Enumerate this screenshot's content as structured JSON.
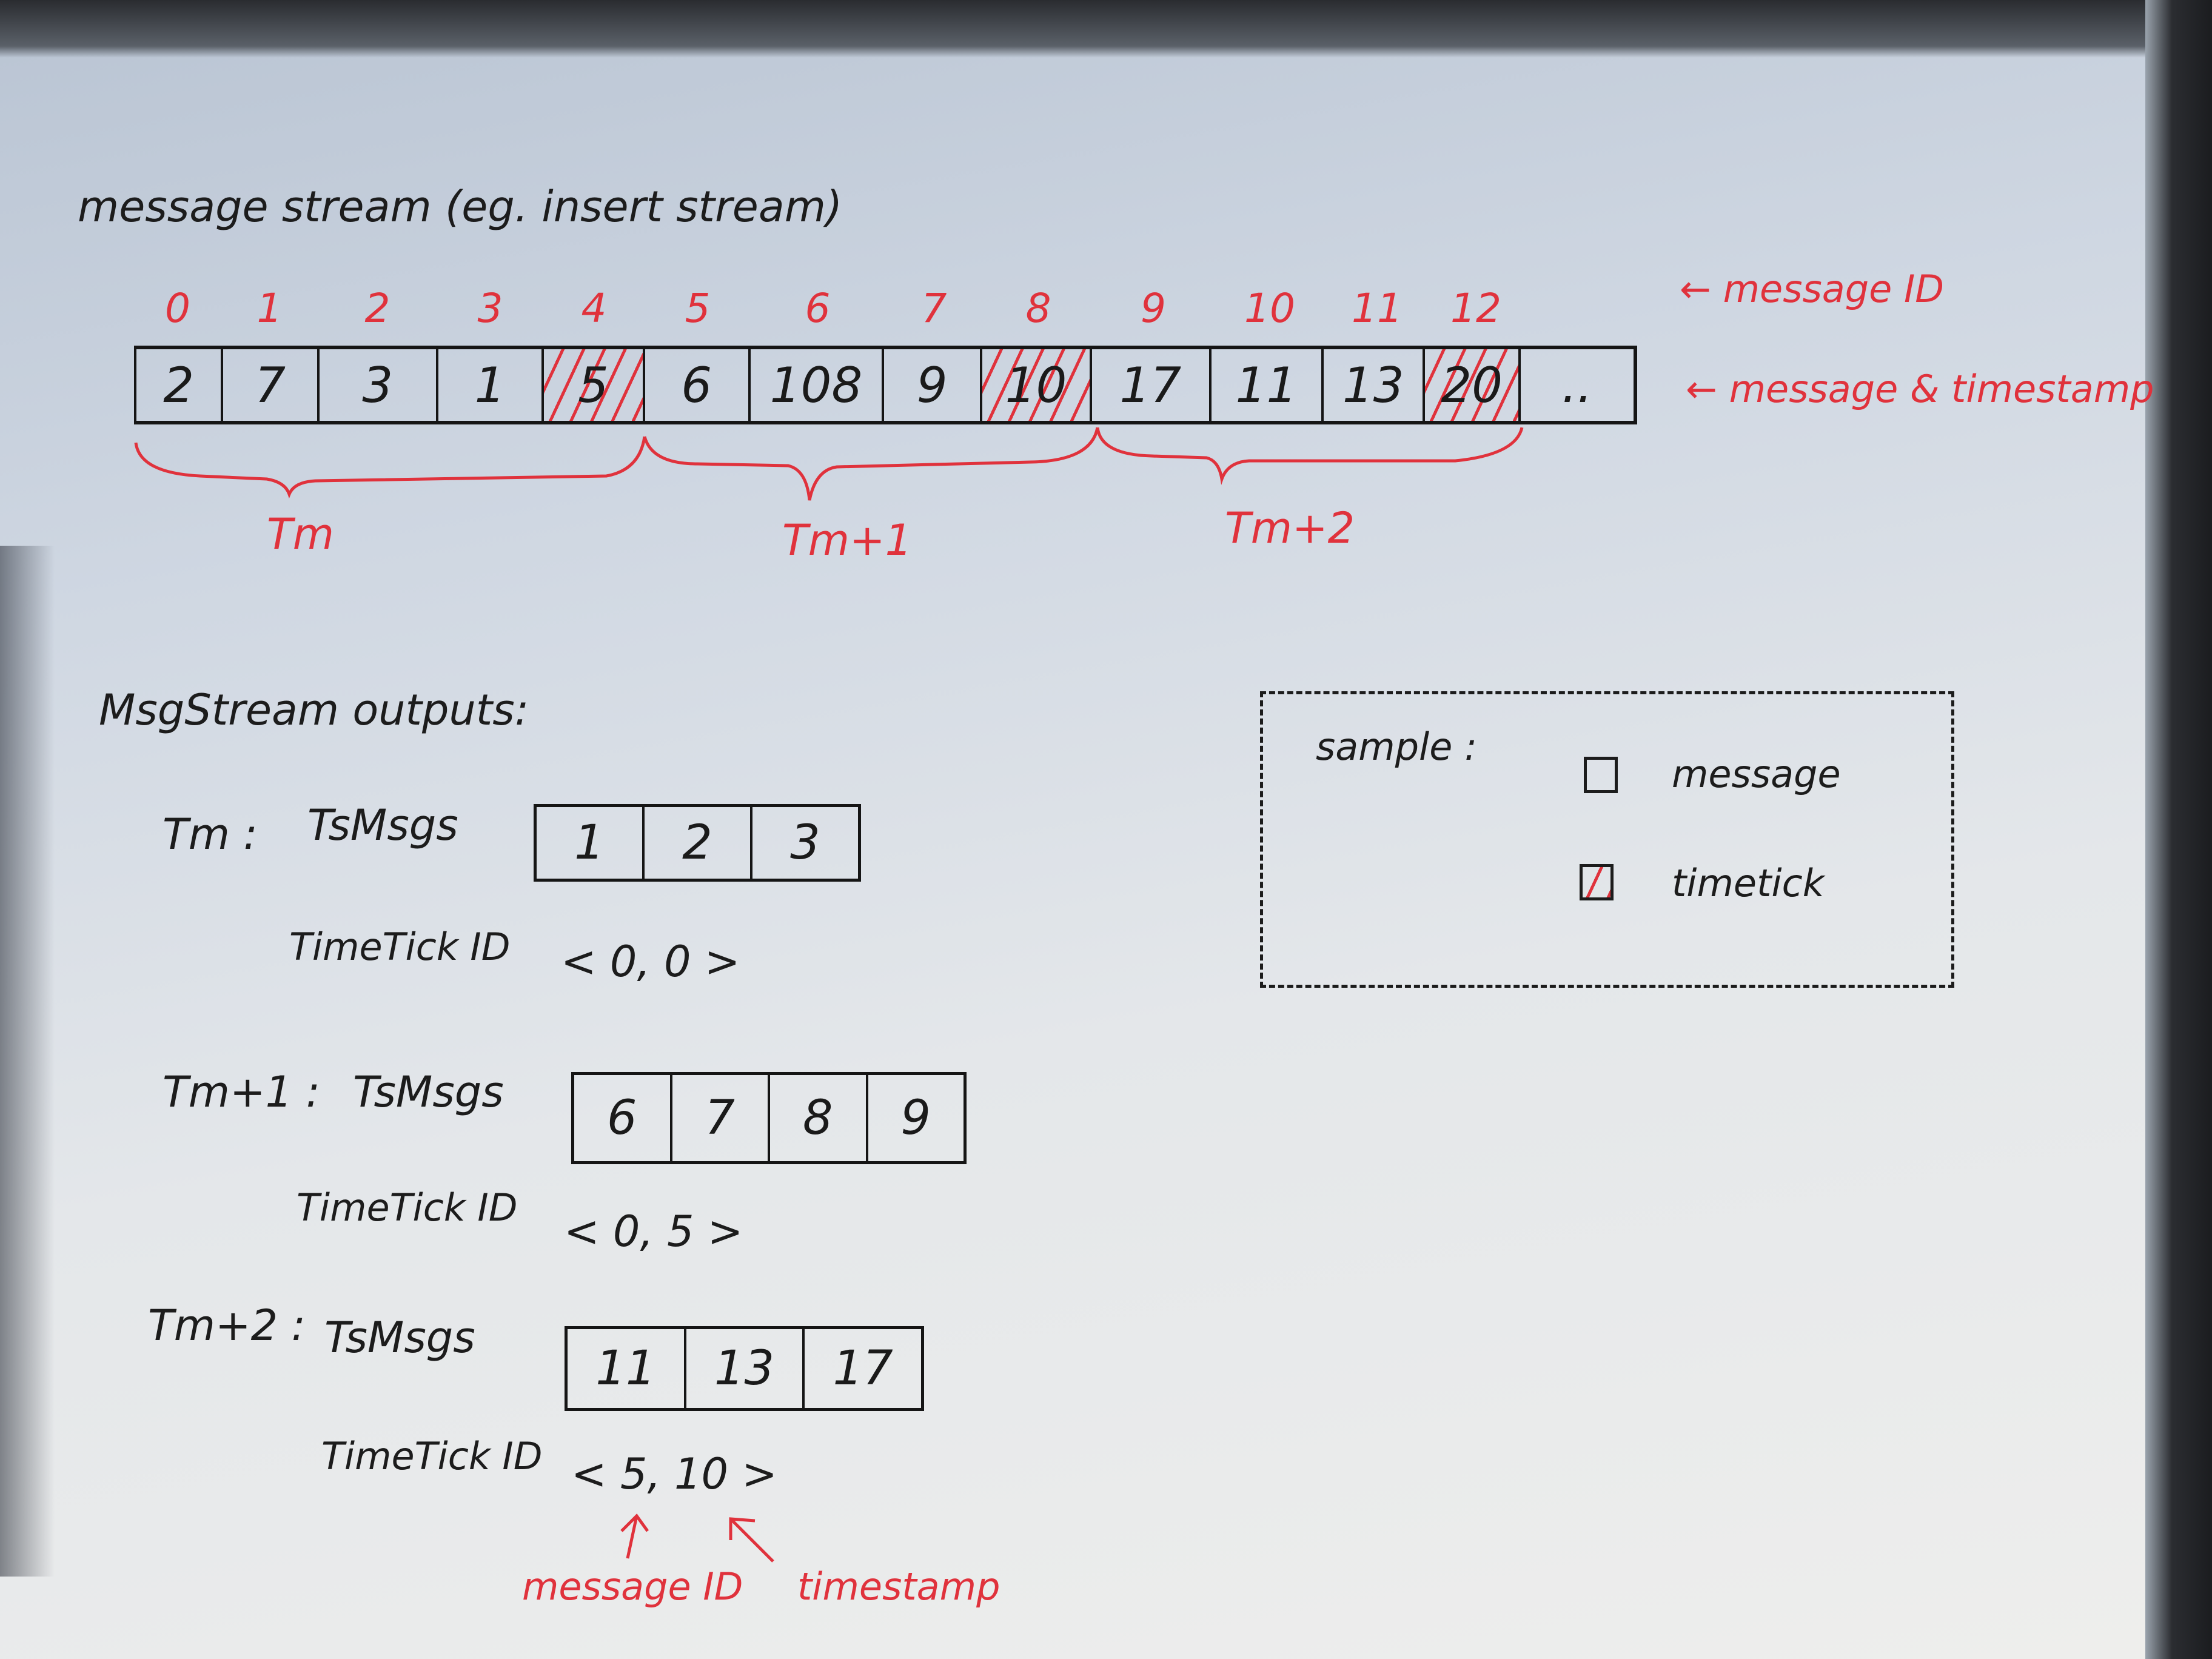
{
  "title": "message stream (eg. insert stream)",
  "stream": {
    "message_ids": [
      "0",
      "1",
      "2",
      "3",
      "4",
      "5",
      "6",
      "7",
      "8",
      "9",
      "10",
      "11",
      "12"
    ],
    "timestamps": [
      "2",
      "7",
      "3",
      "1",
      "5",
      "6",
      "108",
      "9",
      "10",
      "17",
      "11",
      "13",
      "20",
      ".."
    ],
    "timetick_indices": [
      4,
      8,
      12
    ],
    "label_message_id": "← message ID",
    "label_message_timestamp": "← message & timestamp"
  },
  "periods": [
    "Tm",
    "Tm+1",
    "Tm+2"
  ],
  "outputs": {
    "heading": "MsgStream outputs:",
    "groups": [
      {
        "name": "Tm :",
        "tsmsgs_label": "TsMsgs",
        "tsmsgs": [
          "1",
          "2",
          "3"
        ],
        "timetick_label": "TimeTick ID",
        "timetick": "< 0, 0 >"
      },
      {
        "name": "Tm+1 :",
        "tsmsgs_label": "TsMsgs",
        "tsmsgs": [
          "6",
          "7",
          "8",
          "9"
        ],
        "timetick_label": "TimeTick ID",
        "timetick": "< 0, 5 >"
      },
      {
        "name": "Tm+2 :",
        "tsmsgs_label": "TsMsgs",
        "tsmsgs": [
          "11",
          "13",
          "17"
        ],
        "timetick_label": "TimeTick ID",
        "timetick": "< 5, 10 >"
      }
    ],
    "annotation_message_id": "message ID",
    "annotation_timestamp": "timestamp"
  },
  "legend": {
    "title": "sample :",
    "items": [
      {
        "label": "message",
        "hatched": false
      },
      {
        "label": "timetick",
        "hatched": true
      }
    ]
  },
  "colors": {
    "ink": "#1a1a1a",
    "red_pen": "#e0323c",
    "paper": "#dfe3e8"
  }
}
